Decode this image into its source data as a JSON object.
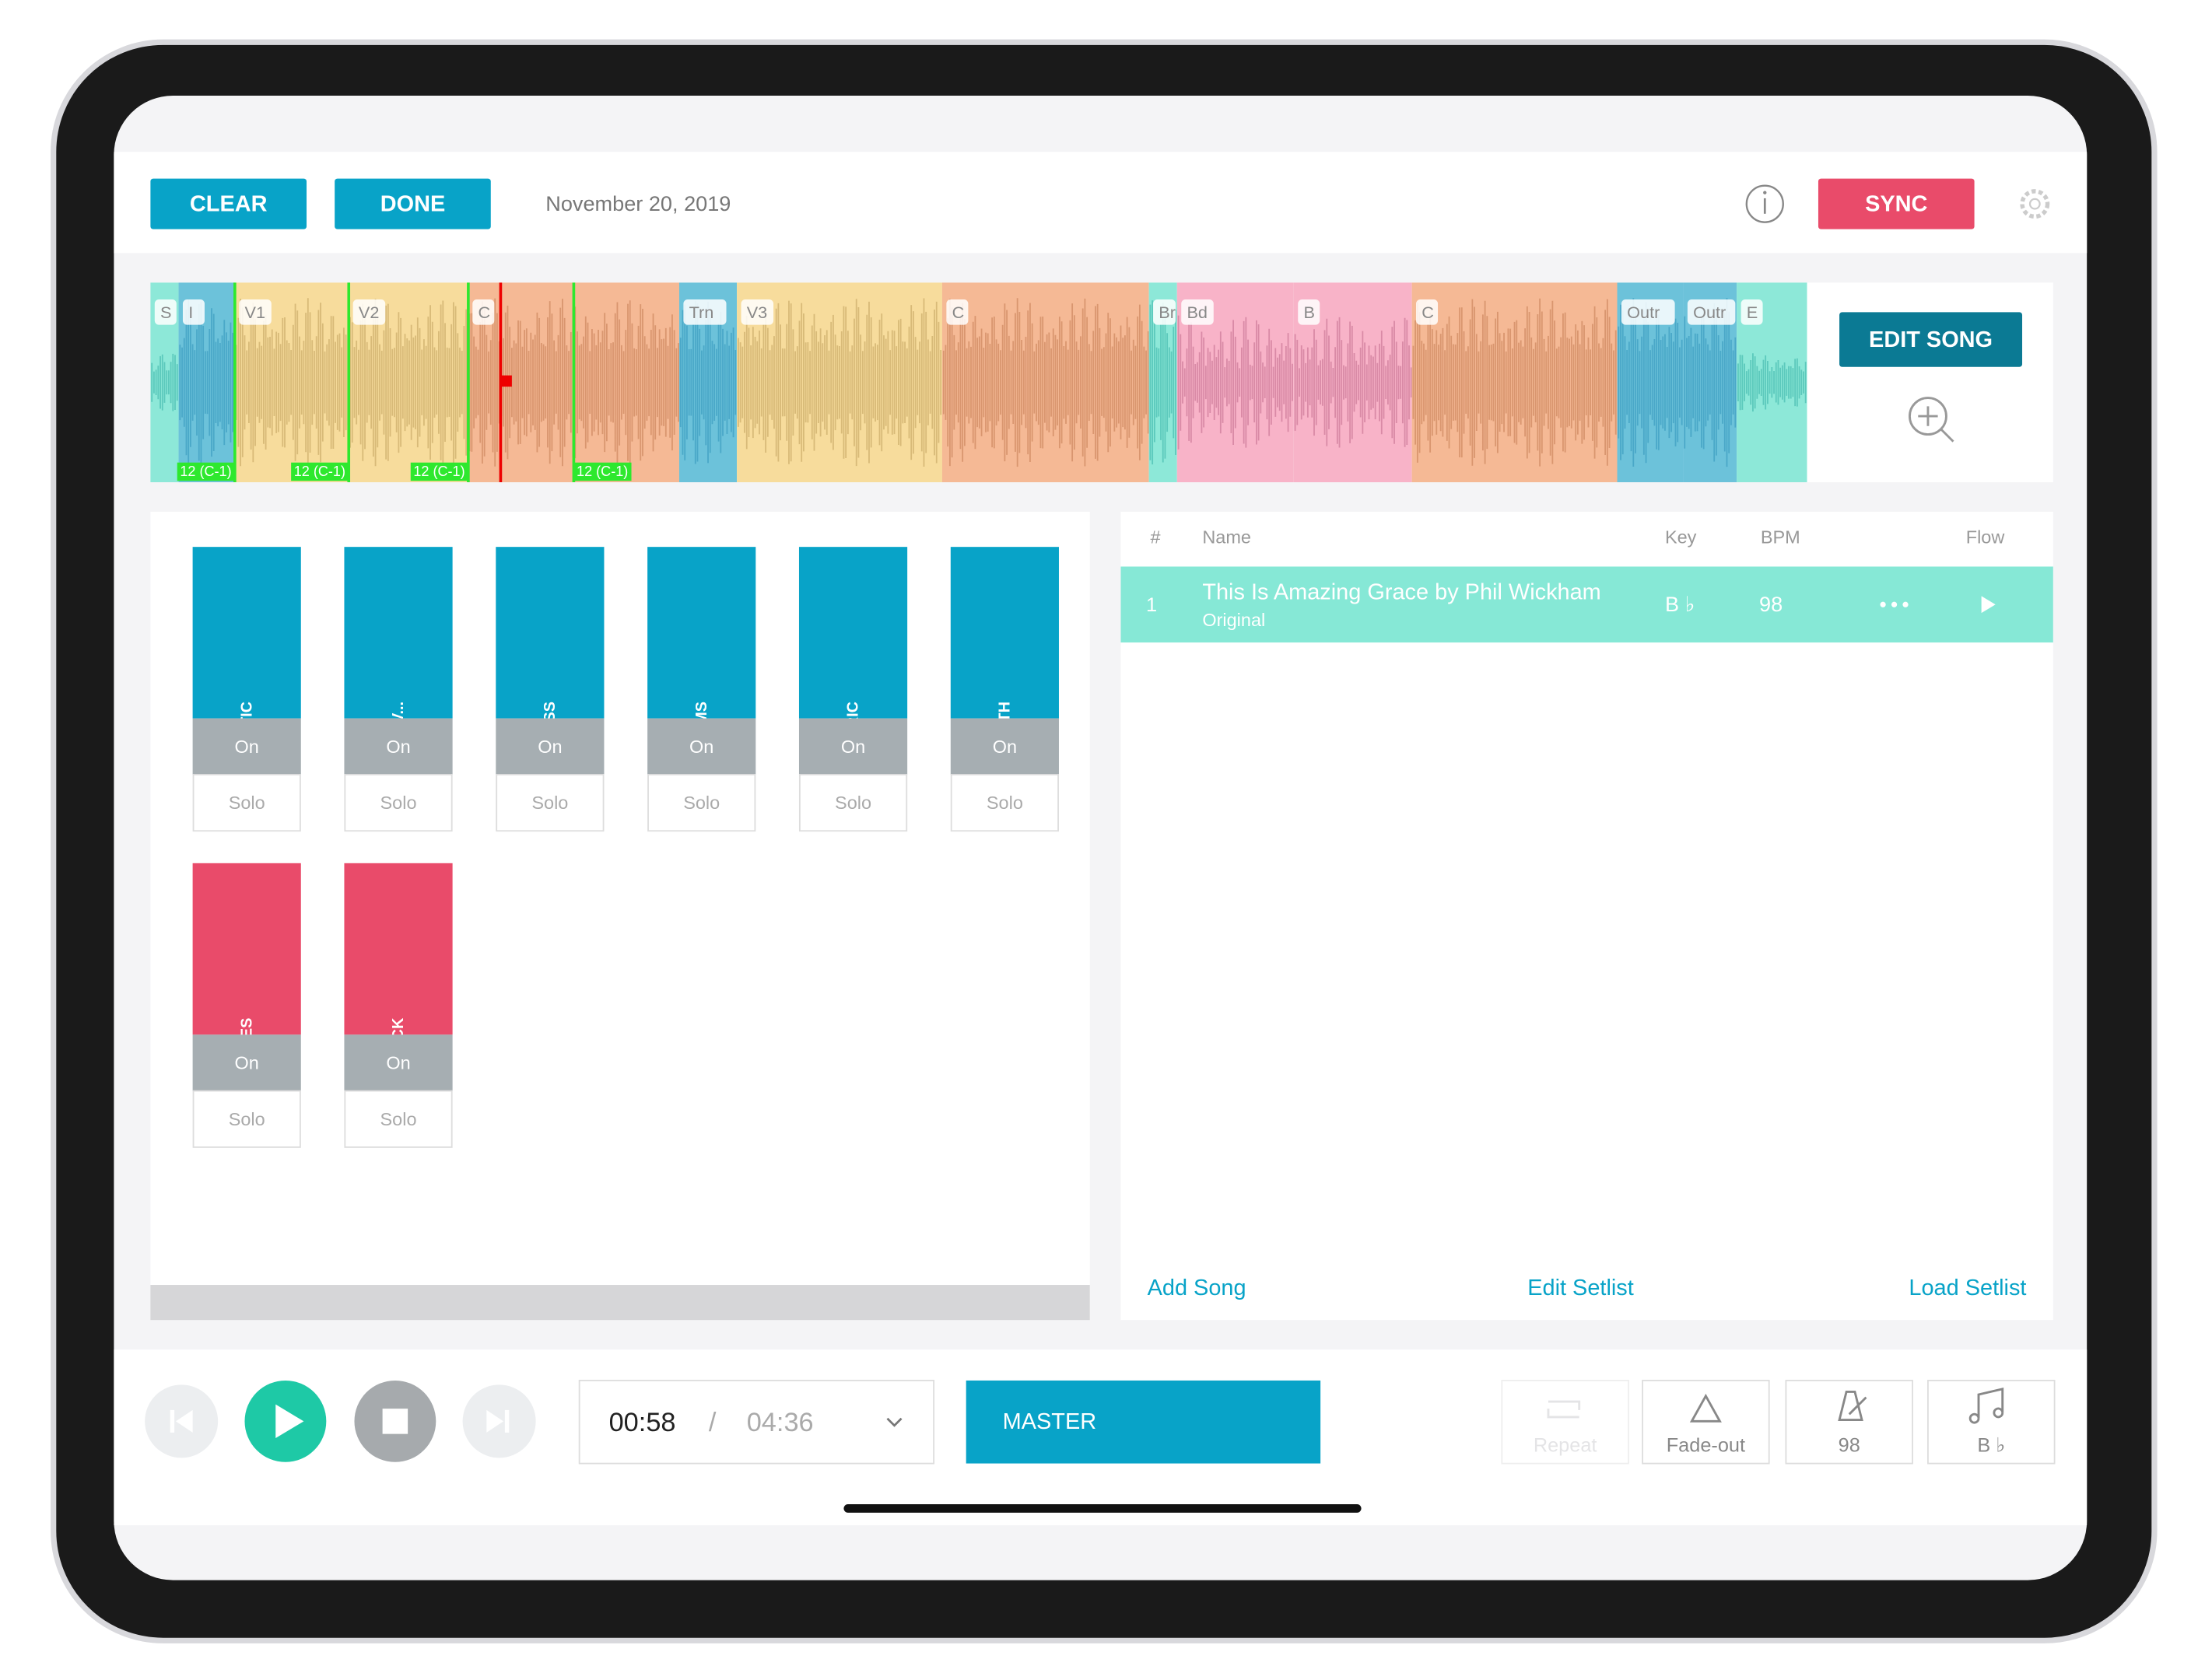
{
  "toolbar": {
    "clear": "CLEAR",
    "done": "DONE",
    "date": "November 20, 2019",
    "sync": "SYNC"
  },
  "timeline": {
    "sections": [
      "S",
      "I",
      "V1",
      "V2",
      "C",
      "Trn",
      "V3",
      "C",
      "Br",
      "Bd",
      "B",
      "C",
      "Outr",
      "Outr",
      "E"
    ],
    "markers": [
      "12 (C-1)",
      "12 (C-1)",
      "12 (C-1)",
      "12 (C-1)"
    ],
    "edit_song": "EDIT SONG"
  },
  "tracks": [
    {
      "name": "ACOUSTIC",
      "on": "On",
      "solo": "Solo",
      "color": "#08a3c8"
    },
    {
      "name": "BACKGROUND_V...",
      "on": "On",
      "solo": "Solo",
      "color": "#08a3c8"
    },
    {
      "name": "BASS",
      "on": "On",
      "solo": "Solo",
      "color": "#08a3c8"
    },
    {
      "name": "DRUMS",
      "on": "On",
      "solo": "Solo",
      "color": "#08a3c8"
    },
    {
      "name": "ELECTRIC",
      "on": "On",
      "solo": "Solo",
      "color": "#08a3c8"
    },
    {
      "name": "SYNTH",
      "on": "On",
      "solo": "Solo",
      "color": "#08a3c8"
    },
    {
      "name": "CUES",
      "on": "On",
      "solo": "Solo",
      "color": "#e94b6a"
    },
    {
      "name": "CLICK",
      "on": "On",
      "solo": "Solo",
      "color": "#e94b6a"
    }
  ],
  "setlist": {
    "headers": [
      "#",
      "Name",
      "Key",
      "BPM",
      "Flow"
    ],
    "rows": [
      {
        "number": "1",
        "name": "This Is Amazing Grace by Phil Wickham",
        "arrangement": "Original",
        "key": "B ♭",
        "bpm": "98"
      }
    ],
    "actions": [
      "Add Song",
      "Edit Setlist",
      "Load Setlist"
    ]
  },
  "transport": {
    "current": "00:58",
    "separator": "/",
    "total": "04:36",
    "mix": "MASTER",
    "buttons": [
      "Repeat",
      "Fade-out",
      "98",
      "B ♭"
    ]
  }
}
